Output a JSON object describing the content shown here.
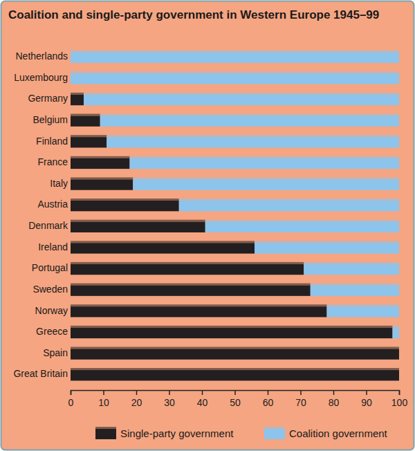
{
  "chart_data": {
    "type": "bar",
    "orientation": "horizontal",
    "stacked": true,
    "title": "Coalition and single-party government in Western Europe 1945–99",
    "categories": [
      "Netherlands",
      "Luxembourg",
      "Germany",
      "Belgium",
      "Finland",
      "France",
      "Italy",
      "Austria",
      "Denmark",
      "Ireland",
      "Portugal",
      "Sweden",
      "Norway",
      "Greece",
      "Spain",
      "Great Britain"
    ],
    "series": [
      {
        "name": "Single-party government",
        "color": "#231f20",
        "values": [
          0,
          0,
          4,
          9,
          11,
          18,
          19,
          33,
          41,
          56,
          71,
          73,
          78,
          98,
          100,
          100
        ]
      },
      {
        "name": "Coalition government",
        "color": "#8cc4ec",
        "values": [
          100,
          100,
          96,
          91,
          89,
          82,
          81,
          67,
          59,
          44,
          29,
          27,
          22,
          2,
          0,
          0
        ]
      }
    ],
    "xlim": [
      0,
      100
    ],
    "xticks": [
      0,
      10,
      20,
      30,
      40,
      50,
      60,
      70,
      80,
      90,
      100
    ],
    "legend": "bottom",
    "grid": false
  }
}
